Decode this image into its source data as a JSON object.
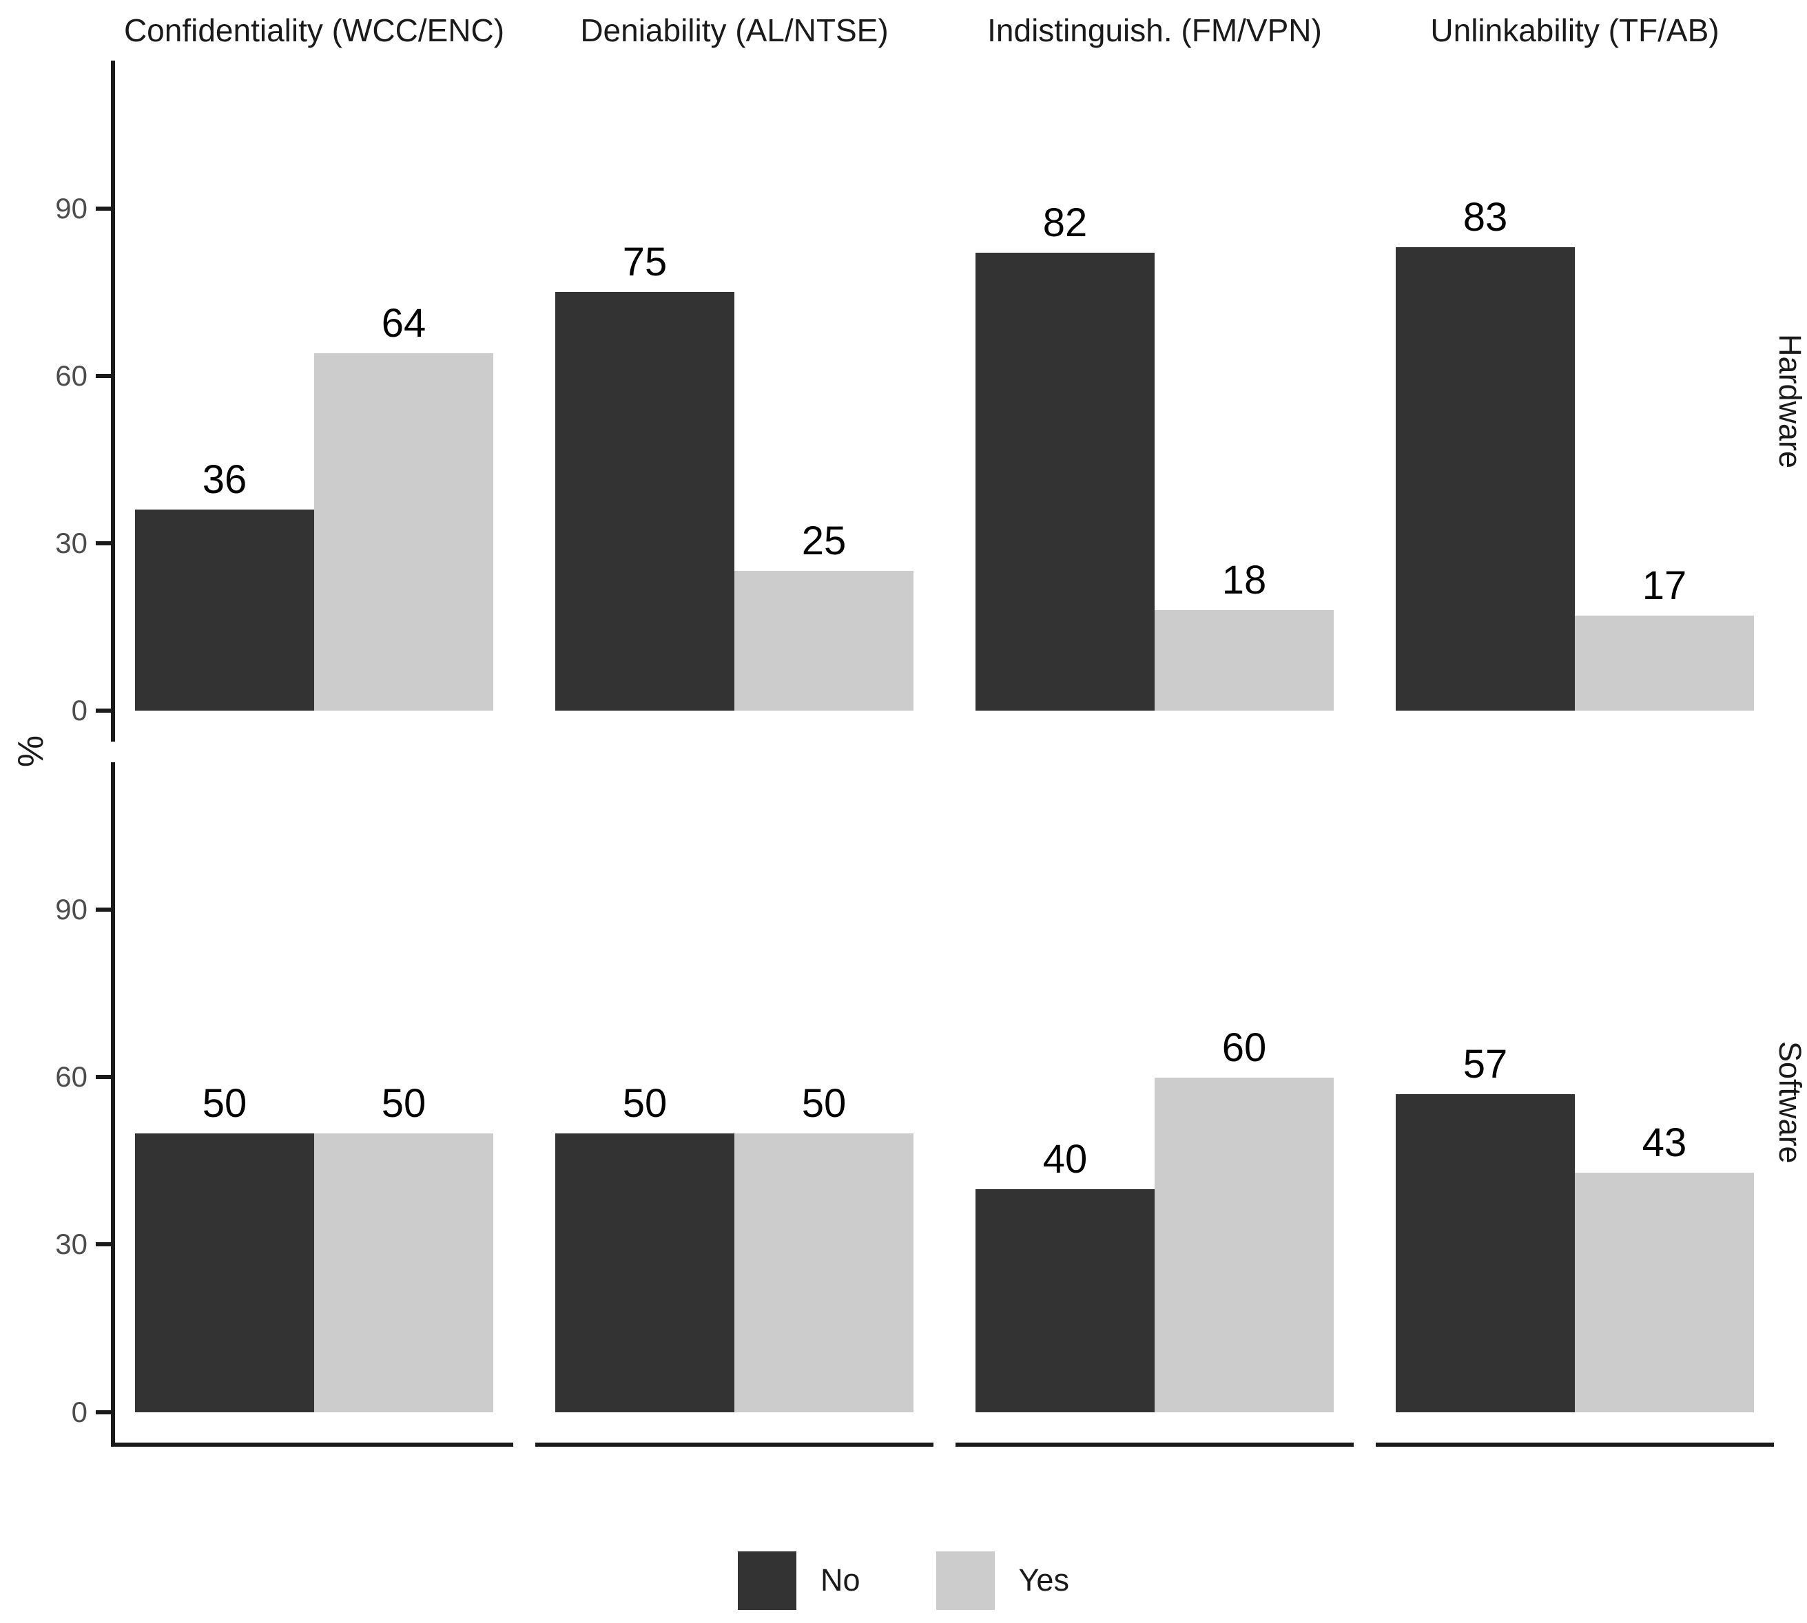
{
  "figure": {
    "y_axis_label": "%",
    "colors": {
      "bar_no": "#333333",
      "bar_yes": "#cccccc",
      "axis_line": "#1a1a1a",
      "tick_text": "#4d4d4d",
      "label_text": "#000000"
    },
    "legend": {
      "position": "bottom",
      "items": [
        {
          "label": "No"
        },
        {
          "label": "Yes"
        }
      ]
    }
  },
  "chart_data": {
    "type": "bar",
    "title": "",
    "xlabel": "",
    "ylabel": "%",
    "yticks": [
      "0",
      "30",
      "60",
      "90"
    ],
    "ytick_values": [
      0,
      30,
      60,
      90
    ],
    "ylim": [
      0,
      115
    ],
    "grid": false,
    "legend_position": "bottom",
    "col_facets": [
      "Confidentiality (WCC/ENC)",
      "Deniability (AL/NTSE)",
      "Indistinguish. (FM/VPN)",
      "Unlinkability (TF/AB)"
    ],
    "row_facets": [
      "Hardware",
      "Software"
    ],
    "series": [
      {
        "name": "No",
        "color": "#333333",
        "values": {
          "Hardware": [
            36,
            75,
            82,
            83
          ],
          "Software": [
            50,
            50,
            40,
            57
          ]
        }
      },
      {
        "name": "Yes",
        "color": "#cccccc",
        "values": {
          "Hardware": [
            64,
            25,
            18,
            17
          ],
          "Software": [
            50,
            50,
            60,
            43
          ]
        }
      }
    ]
  }
}
